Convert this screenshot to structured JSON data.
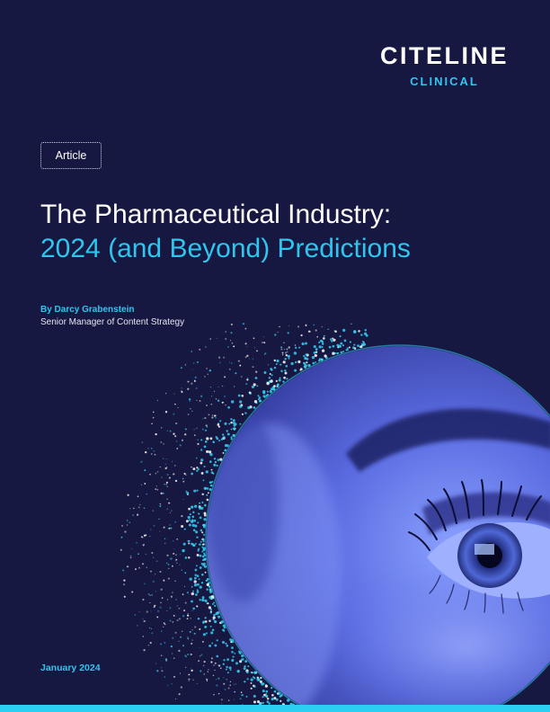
{
  "brand": {
    "name": "CITELINE",
    "sub": "CLINICAL",
    "accent": "#2fc6ee",
    "background": "#161842"
  },
  "tag": "Article",
  "title": {
    "line1": "The Pharmaceutical Industry:",
    "line2": "2024 (and Beyond) Predictions"
  },
  "author": {
    "name": "By Darcy Grabenstein",
    "role": "Senior Manager of Content Strategy"
  },
  "date": "January 2024",
  "image": {
    "subject": "close-up-eye-photo-icon"
  }
}
